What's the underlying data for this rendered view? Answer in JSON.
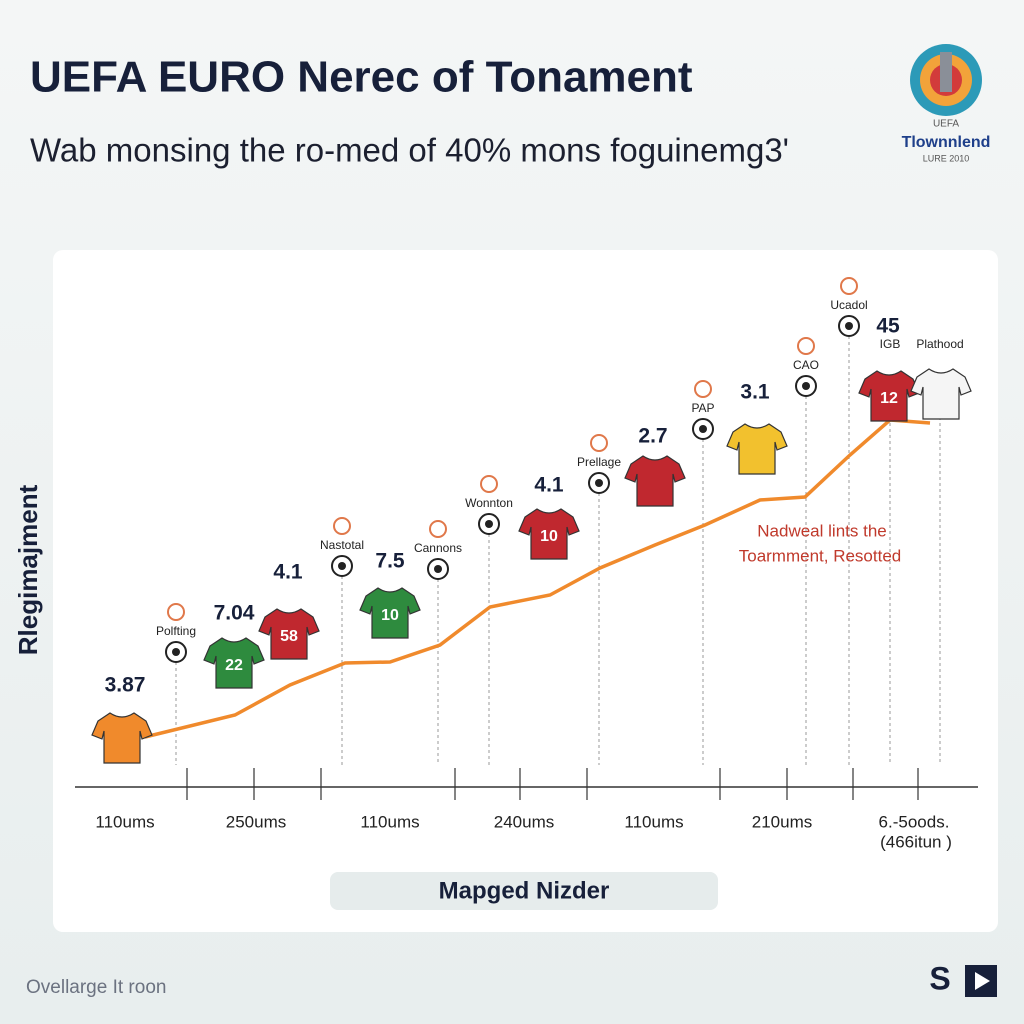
{
  "header": {
    "title": "UEFA EURO Nerec of Tonament",
    "subtitle": "Wab monsing the ro-med of 40% mons foguinemg3'"
  },
  "logo": {
    "top": "UEFA",
    "name": "Tlownnlend",
    "sub": "LURE 2010"
  },
  "chart": {
    "y_label": "Rlegimajment",
    "x_label": "Mapged Nizder",
    "x_categories": [
      "110ums",
      "250ums",
      "110ums",
      "240ums",
      "110ums",
      "210ums",
      "6.-5oods.",
      "(466itun )"
    ],
    "value_labels": [
      "3.87",
      "7.04",
      "4.1",
      "7.5",
      "4.1",
      "2.7",
      "3.1",
      "45"
    ],
    "badges": [
      "Polfting",
      "Nastotal",
      "Cannons",
      "Wonnton",
      "Prellage",
      "PAP",
      "CAO",
      "Ucadol",
      "IGB",
      "Plathood"
    ],
    "jersey_numbers": [
      "22",
      "58",
      "10",
      "10",
      "12"
    ],
    "annotation": [
      "Nadweal lints the",
      "Toarmment, Resotted"
    ],
    "line_color": "#f08a2c"
  },
  "footer": {
    "caption": "Ovellarge It roon",
    "brand": "S"
  }
}
